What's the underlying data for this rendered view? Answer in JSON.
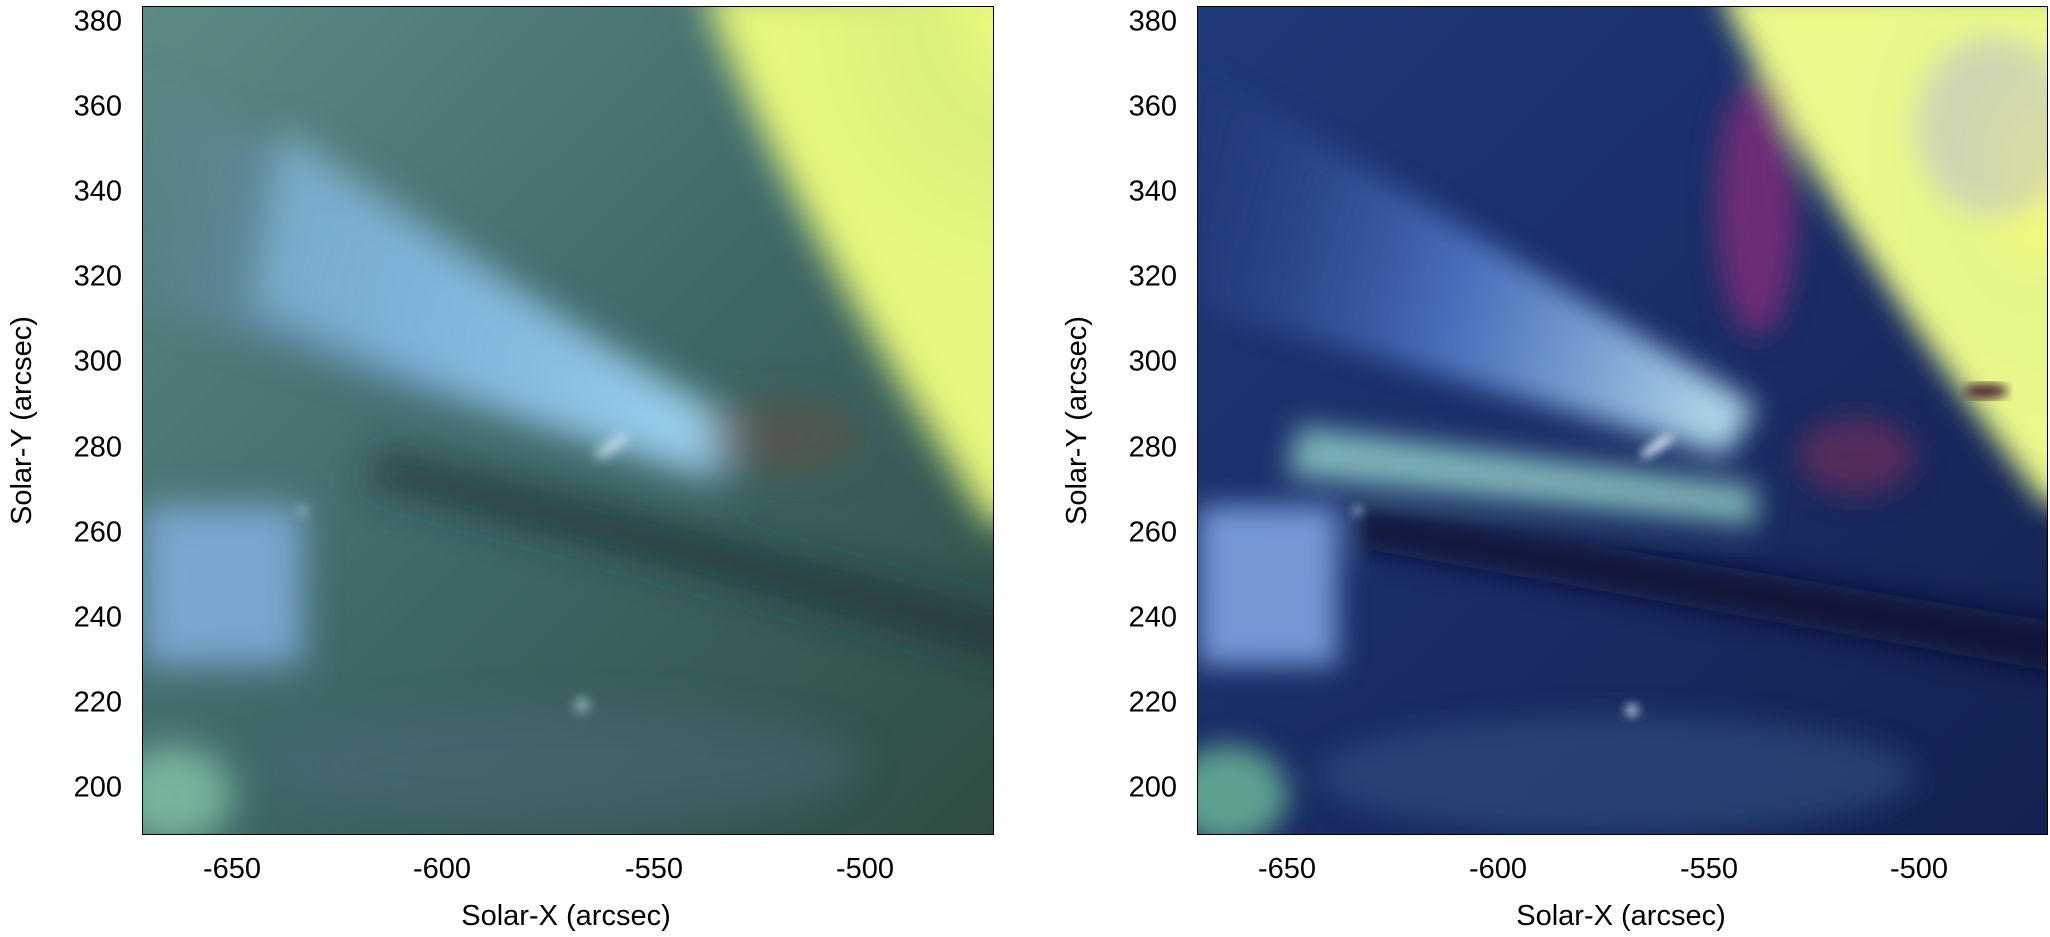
{
  "panels": [
    {
      "id": "left",
      "variant": "smooth",
      "xlabel": "Solar-X (arcsec)",
      "ylabel": "Solar-Y (arcsec)",
      "xticks": [
        "-650",
        "-600",
        "-550",
        "-500"
      ],
      "yticks": [
        "380",
        "360",
        "340",
        "320",
        "300",
        "280",
        "260",
        "240",
        "220",
        "200"
      ]
    },
    {
      "id": "right",
      "variant": "enhanced",
      "xlabel": "Solar-X (arcsec)",
      "ylabel": "Solar-Y (arcsec)",
      "xticks": [
        "-650",
        "-600",
        "-550",
        "-500"
      ],
      "yticks": [
        "380",
        "360",
        "340",
        "320",
        "300",
        "280",
        "260",
        "240",
        "220",
        "200"
      ]
    }
  ],
  "axis": {
    "x_range": [
      -670,
      -470
    ],
    "y_range": [
      189,
      385
    ],
    "xtick_values": [
      -650,
      -600,
      -550,
      -500
    ],
    "ytick_values": [
      380,
      360,
      340,
      320,
      300,
      280,
      260,
      240,
      220,
      200
    ]
  },
  "colors": {
    "plume_blue": "#6f9bd8",
    "dark_green": "#2d4a3f",
    "active_region_yellow": "#f2f57a",
    "frame": "#000000"
  }
}
